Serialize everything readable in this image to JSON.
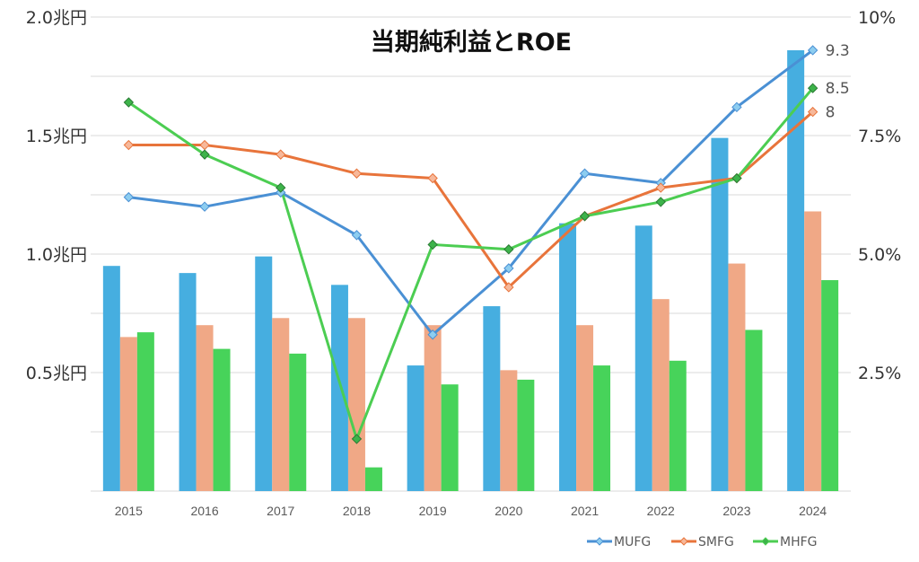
{
  "chart_data": {
    "type": "bar+line",
    "title": "当期純利益とROE",
    "categories": [
      "2015",
      "2016",
      "2017",
      "2018",
      "2019",
      "2020",
      "2021",
      "2022",
      "2023",
      "2024"
    ],
    "left_axis": {
      "unit": "兆円",
      "range": [
        0,
        2.0
      ],
      "ticks": [
        {
          "value": 0.5,
          "label": "0.5兆円"
        },
        {
          "value": 1.0,
          "label": "1.0兆円"
        },
        {
          "value": 1.5,
          "label": "1.5兆円"
        },
        {
          "value": 2.0,
          "label": "2.0兆円"
        }
      ]
    },
    "right_axis": {
      "unit": "%",
      "range": [
        0,
        10
      ],
      "ticks": [
        {
          "value": 2.5,
          "label": "2.5%"
        },
        {
          "value": 5.0,
          "label": "5.0%"
        },
        {
          "value": 7.5,
          "label": "7.5%"
        },
        {
          "value": 10,
          "label": "10%"
        }
      ]
    },
    "grid": true,
    "bar_series": [
      {
        "name": "MUFG",
        "color": "#46aee0",
        "values": [
          0.95,
          0.92,
          0.99,
          0.87,
          0.53,
          0.78,
          1.13,
          1.12,
          1.49,
          1.86
        ]
      },
      {
        "name": "SMFG",
        "color": "#f0a886",
        "values": [
          0.65,
          0.7,
          0.73,
          0.73,
          0.7,
          0.51,
          0.7,
          0.81,
          0.96,
          1.18
        ]
      },
      {
        "name": "MHFG",
        "color": "#47d35a",
        "values": [
          0.67,
          0.6,
          0.58,
          0.1,
          0.45,
          0.47,
          0.53,
          0.55,
          0.68,
          0.89
        ]
      }
    ],
    "line_series": [
      {
        "name": "MUFG",
        "color": "#4a90d4",
        "marker_color": "#8dcdf0",
        "values": [
          6.2,
          6.0,
          6.3,
          5.4,
          3.3,
          4.7,
          6.7,
          6.5,
          8.1,
          9.3
        ],
        "end_label": "9.3"
      },
      {
        "name": "SMFG",
        "color": "#e8743b",
        "marker_color": "#f7b89a",
        "values": [
          7.3,
          7.3,
          7.1,
          6.7,
          6.6,
          4.3,
          5.8,
          6.4,
          6.6,
          8.0
        ],
        "end_label": "8"
      },
      {
        "name": "MHFG",
        "color": "#4ccd52",
        "marker_color": "#3db34a",
        "values": [
          8.2,
          7.1,
          6.4,
          1.1,
          5.2,
          5.1,
          5.8,
          6.1,
          6.6,
          8.5
        ],
        "end_label": "8.5"
      }
    ],
    "legend": {
      "placement": "bottom-right",
      "entries": [
        "MUFG",
        "SMFG",
        "MHFG"
      ]
    }
  }
}
